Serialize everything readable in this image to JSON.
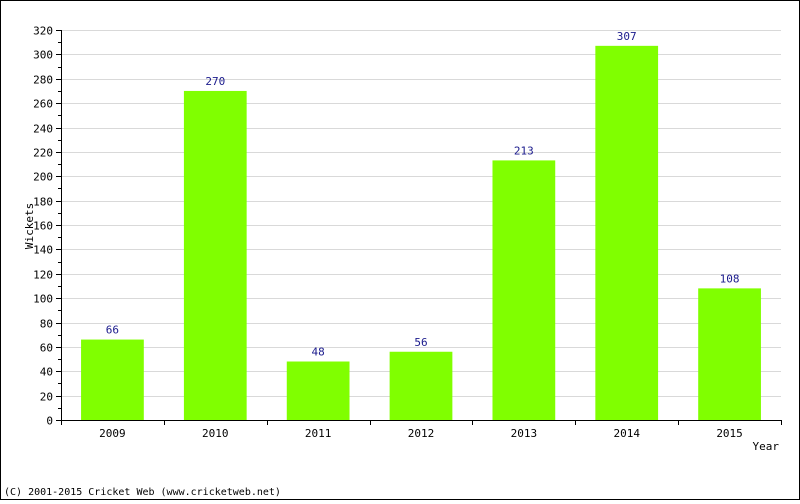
{
  "footer": {
    "copyright": "(C) 2001-2015 Cricket Web (www.cricketweb.net)"
  },
  "colors": {
    "bar": "#80ff00",
    "grid": "#d9d9d9",
    "axis": "#000000",
    "value_label": "#1a1a8c",
    "border": "#000000"
  },
  "chart_data": {
    "type": "bar",
    "categories": [
      "2009",
      "2010",
      "2011",
      "2012",
      "2013",
      "2014",
      "2015"
    ],
    "values": [
      66,
      270,
      48,
      56,
      213,
      307,
      108
    ],
    "value_labels": [
      "66",
      "270",
      "48",
      "56",
      "213",
      "307",
      "108"
    ],
    "xlabel": "Year",
    "ylabel": "Wickets",
    "ylim": [
      0,
      320
    ],
    "yticks": [
      0,
      20,
      40,
      60,
      80,
      100,
      120,
      140,
      160,
      180,
      200,
      220,
      240,
      260,
      280,
      300,
      320
    ],
    "ytick_labels": [
      "0",
      "20",
      "40",
      "60",
      "80",
      "100",
      "120",
      "140",
      "160",
      "180",
      "200",
      "220",
      "240",
      "260",
      "280",
      "300",
      "320"
    ],
    "grid": true,
    "legend": "none"
  }
}
